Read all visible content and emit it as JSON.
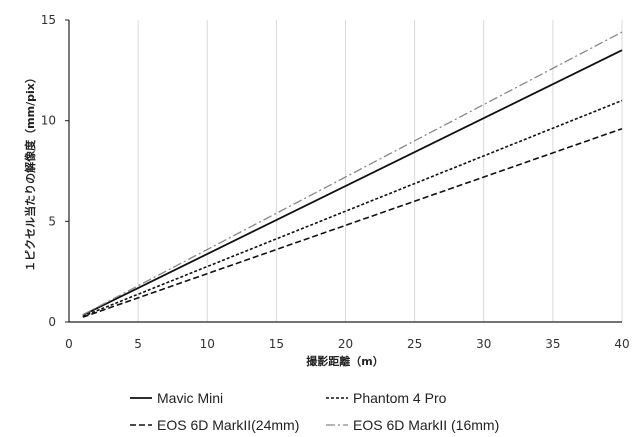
{
  "chart_data": {
    "type": "line",
    "title": "",
    "xlabel": "撮影距離（m）",
    "ylabel": "１ピクセル当たりの解像度（mm/pix）",
    "xlim": [
      0,
      40
    ],
    "ylim": [
      0,
      15
    ],
    "x_ticks": [
      "0",
      "5",
      "10",
      "15",
      "20",
      "25",
      "30",
      "35",
      "40"
    ],
    "y_ticks": [
      "0",
      "5",
      "10",
      "15"
    ],
    "grid": "vertical",
    "legend_position": "bottom",
    "series": [
      {
        "name": "Mavic Mini",
        "x": [
          1,
          40
        ],
        "y": [
          0.34,
          13.5
        ],
        "style": "solid",
        "color": "#111111"
      },
      {
        "name": "Phantom 4 Pro",
        "x": [
          1,
          40
        ],
        "y": [
          0.28,
          11.0
        ],
        "style": "dotted",
        "color": "#111111"
      },
      {
        "name": "EOS 6D MarkII(24mm)",
        "x": [
          1,
          40
        ],
        "y": [
          0.24,
          9.6
        ],
        "style": "dashed",
        "color": "#111111"
      },
      {
        "name": "EOS 6D MarkII (16mm)",
        "x": [
          1,
          40
        ],
        "y": [
          0.36,
          14.4
        ],
        "style": "dashdot",
        "color": "#888888"
      }
    ]
  }
}
